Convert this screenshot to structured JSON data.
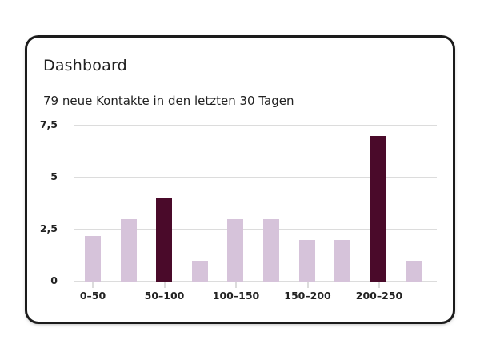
{
  "card": {
    "title": "Dashboard",
    "subtitle": "79 neue Kontakte in den letzten 30 Tagen"
  },
  "colors": {
    "bar_light": "#d6c3da",
    "bar_dark": "#4a0a2a",
    "grid": "#dcdcdc"
  },
  "chart_data": {
    "type": "bar",
    "title": "79 neue Kontakte in den letzten 30 Tagen",
    "xlabel": "",
    "ylabel": "",
    "ylim": [
      0,
      7.5
    ],
    "y_ticks": [
      "0",
      "2,5",
      "5",
      "7,5"
    ],
    "x_tick_labels": [
      "0–50",
      "50–100",
      "100–150",
      "150–200",
      "200–250"
    ],
    "categories": [
      "1",
      "2",
      "3",
      "4",
      "5",
      "6",
      "7",
      "8",
      "9",
      "10"
    ],
    "values": [
      2.2,
      3,
      4,
      1,
      3,
      3,
      2,
      2,
      7,
      1
    ],
    "highlighted": [
      false,
      false,
      true,
      false,
      false,
      false,
      false,
      false,
      true,
      false
    ],
    "grid": true,
    "legend": "none"
  }
}
